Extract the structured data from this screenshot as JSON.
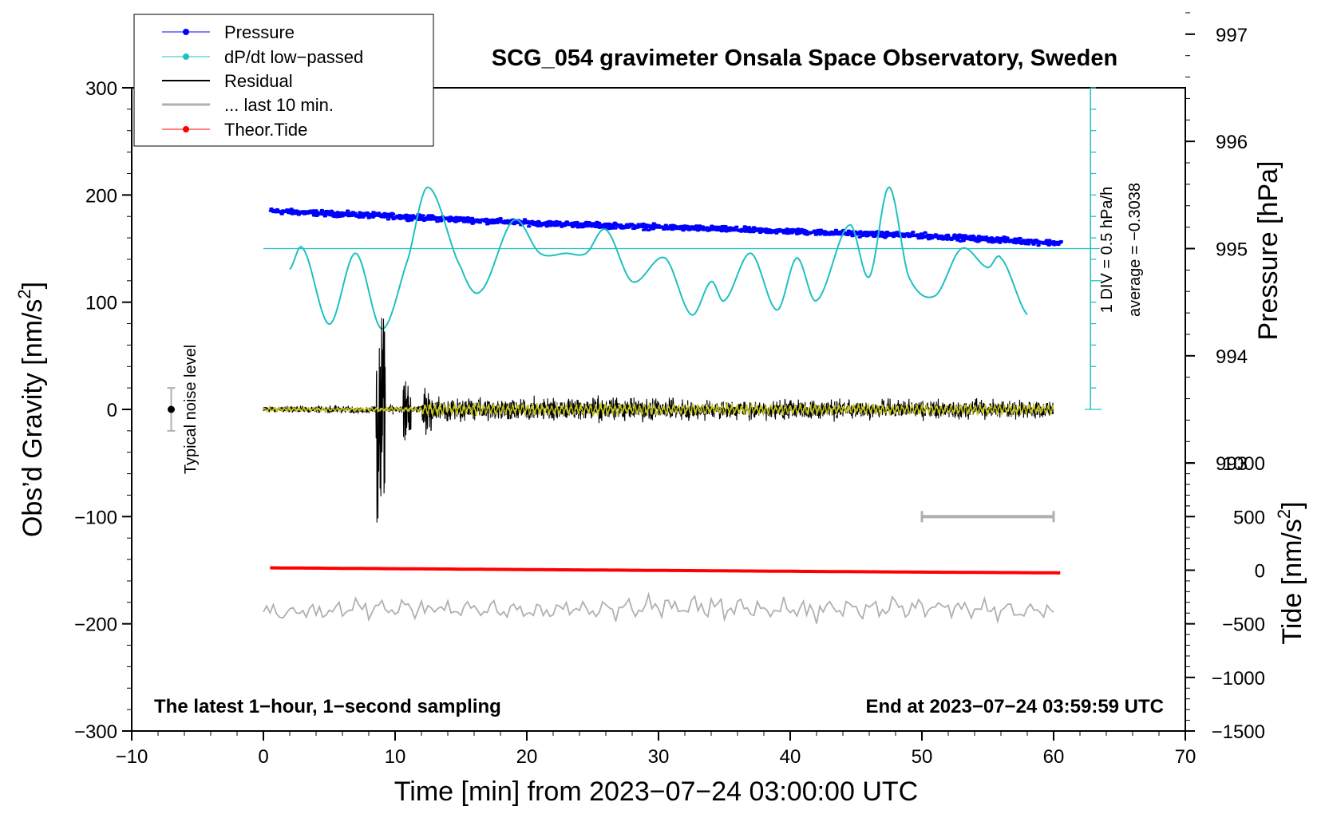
{
  "chart_data": {
    "type": "line",
    "title": "SCG_054 gravimeter Onsala Space Observatory, Sweden",
    "xlabel": "Time [min] from 2023−07−24 03:00:00 UTC",
    "ylabel_main": "Obs’d Gravity [nm/s",
    "ylabel_sup": "2",
    "ylabel_close": "]",
    "ylabel_pressure": "Pressure [hPa]",
    "ylabel_tide_main": "Tide [nm/s",
    "ylabel_tide_sup": "2",
    "ylabel_tide_close": "]",
    "xlim": [
      -10,
      70
    ],
    "ylim": [
      -300,
      300
    ],
    "x_ticks": [
      -10,
      0,
      10,
      20,
      30,
      40,
      50,
      60,
      70
    ],
    "x_tick_labels": [
      "−10",
      "0",
      "10",
      "20",
      "30",
      "40",
      "50",
      "60",
      "70"
    ],
    "y_ticks": [
      -300,
      -200,
      -100,
      0,
      100,
      200,
      300
    ],
    "y_tick_labels": [
      "−300",
      "−200",
      "−100",
      "0",
      "100",
      "200",
      "300"
    ],
    "pressure_ticks": [
      993,
      994,
      995,
      996,
      997
    ],
    "pressure_tick_labels": [
      "993",
      "994",
      "995",
      "996",
      "997"
    ],
    "pressure_gravity_map": {
      "p_ref": 995,
      "g_ref": 150,
      "gravity_per_hpa": 100
    },
    "tide_ticks": [
      -1500,
      -1000,
      -500,
      0,
      500,
      1000
    ],
    "tide_tick_labels": [
      "−1500",
      "−1000",
      "−500",
      "0",
      "500",
      "1000"
    ],
    "tide_gravity_map": {
      "t_ref": 0,
      "g_ref": -150,
      "gravity_per_tide": 0.1
    },
    "legend": [
      "Pressure",
      "dP/dt low−passed",
      "Residual",
      "... last 10 min.",
      "Theor.Tide"
    ],
    "legend_location": "top-left",
    "series": [
      {
        "name": "Pressure",
        "color": "#0000ff",
        "unit": "hPa",
        "x": [
          0.5,
          10,
          20,
          30,
          40,
          50,
          60.5
        ],
        "values": [
          995.35,
          995.3,
          995.24,
          995.2,
          995.16,
          995.12,
          995.05
        ]
      },
      {
        "name": "dP/dt low−passed",
        "color": "#20c0c0",
        "unit": "hPa/h",
        "x": [
          2,
          3,
          5,
          7,
          9,
          11,
          12.5,
          15,
          16.5,
          19,
          21,
          23,
          24.5,
          26,
          28,
          30.5,
          32.5,
          34,
          35,
          37,
          39,
          40.5,
          42,
          44.5,
          46,
          47.5,
          49,
          51,
          53,
          55,
          56,
          58
        ],
        "values": [
          -0.22,
          0.0,
          -0.8,
          -0.05,
          -0.85,
          -0.1,
          0.65,
          -0.2,
          -0.45,
          0.3,
          -0.05,
          -0.05,
          -0.05,
          0.2,
          -0.35,
          -0.1,
          -0.7,
          -0.35,
          -0.55,
          -0.05,
          -0.65,
          -0.1,
          -0.55,
          0.25,
          -0.3,
          0.65,
          -0.3,
          -0.5,
          0.0,
          -0.2,
          -0.1,
          -0.7
        ]
      },
      {
        "name": "Residual",
        "color": "#000000",
        "unit": "nm/s^2",
        "x": [
          0,
          8.5,
          8.7,
          8.9,
          9.1,
          10.5,
          11,
          12.5,
          20,
          30,
          40,
          50,
          60
        ],
        "values": [
          0,
          3,
          115,
          -65,
          100,
          25,
          -38,
          15,
          8,
          10,
          8,
          10,
          12
        ]
      },
      {
        "name": "... last 10 min.",
        "color": "#b0b0b0",
        "unit": "nm/s^2",
        "x": [
          0,
          10,
          20,
          30,
          40,
          50,
          60
        ],
        "values": [
          -190,
          -185,
          -188,
          -184,
          -187,
          -185,
          -188
        ]
      },
      {
        "name": "Theor.Tide",
        "color": "#ff0000",
        "unit": "nm/s^2",
        "x": [
          0.5,
          10,
          20,
          30,
          40,
          50,
          60.5
        ],
        "values": [
          22,
          14,
          6,
          -2,
          -10,
          -18,
          -25
        ]
      }
    ],
    "scale_bar": {
      "label": "1 DIV = 0.5 hPa/h",
      "divisions": 15,
      "baseline_hpa": 995
    },
    "average_label": "average = −0.3038",
    "ten_min_bracket": [
      50,
      60
    ],
    "noise_label": "Typical noise level",
    "noise_center": 0,
    "noise_halfwidth": 20,
    "note_left": "The latest 1−hour, 1−second sampling",
    "note_right": "End at 2023−07−24 03:59:59 UTC"
  }
}
